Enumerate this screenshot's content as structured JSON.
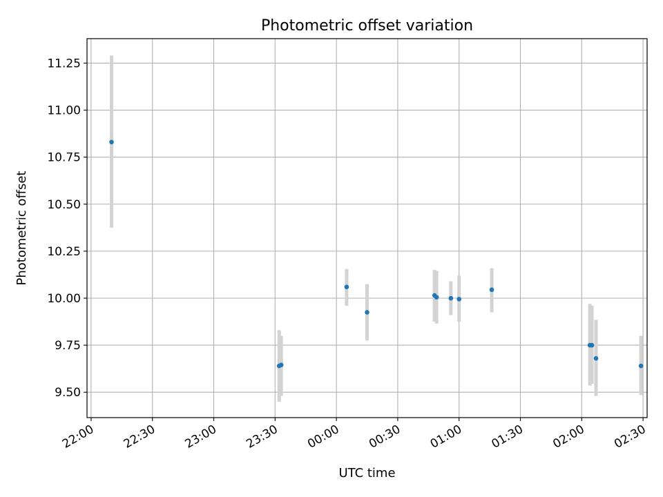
{
  "chart_data": {
    "type": "scatter",
    "title": "Photometric offset variation",
    "xlabel": "UTC time",
    "ylabel": "Photometric offset",
    "x_axis_kind": "time (HH:MM)",
    "xlim": [
      "21:58",
      "02:32"
    ],
    "ylim": [
      9.365,
      11.38
    ],
    "xticks": [
      "22:00",
      "22:30",
      "23:00",
      "23:30",
      "00:00",
      "00:30",
      "01:00",
      "01:30",
      "02:00",
      "02:30"
    ],
    "yticks": [
      "9.50",
      "9.75",
      "10.00",
      "10.25",
      "10.50",
      "10.75",
      "11.00",
      "11.25"
    ],
    "grid": true,
    "marker_color": "#1f77b4",
    "errorbar_color": "#d3d3d3",
    "points": [
      {
        "time": "22:10",
        "y": 10.83,
        "y_low": 10.375,
        "y_high": 11.29
      },
      {
        "time": "23:32",
        "y": 9.64,
        "y_low": 9.45,
        "y_high": 9.83
      },
      {
        "time": "23:33",
        "y": 9.645,
        "y_low": 9.48,
        "y_high": 9.8
      },
      {
        "time": "00:05",
        "y": 10.06,
        "y_low": 9.96,
        "y_high": 10.155
      },
      {
        "time": "00:15",
        "y": 9.925,
        "y_low": 9.775,
        "y_high": 10.075
      },
      {
        "time": "00:48",
        "y": 10.015,
        "y_low": 9.875,
        "y_high": 10.15
      },
      {
        "time": "00:49",
        "y": 10.005,
        "y_low": 9.865,
        "y_high": 10.145
      },
      {
        "time": "00:56",
        "y": 10.0,
        "y_low": 9.91,
        "y_high": 10.09
      },
      {
        "time": "01:00",
        "y": 9.995,
        "y_low": 9.875,
        "y_high": 10.12
      },
      {
        "time": "01:16",
        "y": 10.045,
        "y_low": 9.925,
        "y_high": 10.16
      },
      {
        "time": "02:04",
        "y": 9.75,
        "y_low": 9.535,
        "y_high": 9.97
      },
      {
        "time": "02:05",
        "y": 9.75,
        "y_low": 9.545,
        "y_high": 9.96
      },
      {
        "time": "02:07",
        "y": 9.68,
        "y_low": 9.48,
        "y_high": 9.885
      },
      {
        "time": "02:29",
        "y": 9.64,
        "y_low": 9.485,
        "y_high": 9.8
      }
    ]
  }
}
